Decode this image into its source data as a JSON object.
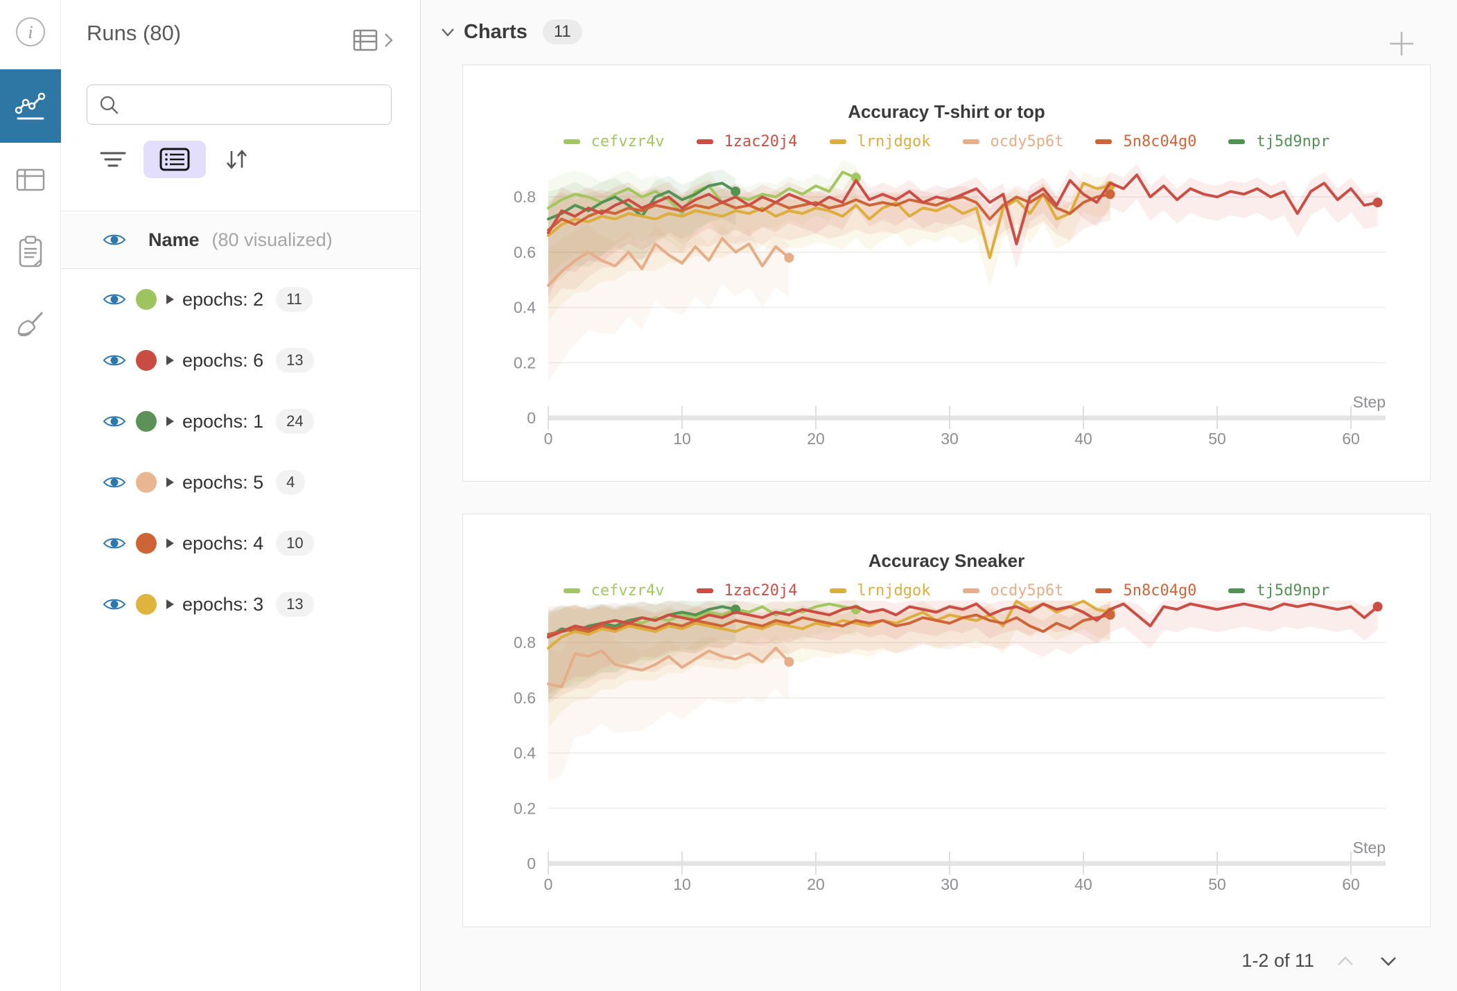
{
  "left_rail": {
    "items": [
      {
        "icon": "info-icon",
        "active": false
      },
      {
        "icon": "line-chart-icon",
        "active": true
      },
      {
        "icon": "table-icon",
        "active": false
      },
      {
        "icon": "clipboard-icon",
        "active": false
      },
      {
        "icon": "broom-icon",
        "active": false
      }
    ],
    "active_color": "#2e76a4"
  },
  "runs_panel": {
    "title": "Runs (80)",
    "search": {
      "placeholder": "",
      "value": ""
    },
    "header": {
      "name_label": "Name",
      "visualized_label": "(80 visualized)"
    },
    "eye_color": "#2e77ae",
    "rows": [
      {
        "label": "epochs: 2",
        "count": "11",
        "color": "#9ec45f"
      },
      {
        "label": "epochs: 6",
        "count": "13",
        "color": "#c94c43"
      },
      {
        "label": "epochs: 1",
        "count": "24",
        "color": "#5b9257"
      },
      {
        "label": "epochs: 5",
        "count": "4",
        "color": "#e8b691"
      },
      {
        "label": "epochs: 4",
        "count": "10",
        "color": "#cd6436"
      },
      {
        "label": "epochs: 3",
        "count": "13",
        "color": "#e0b33e"
      }
    ]
  },
  "main": {
    "section_label": "Charts",
    "section_count": "11",
    "pagination": {
      "label": "1-2 of 11"
    }
  },
  "chart_data": [
    {
      "type": "line",
      "title": "Accuracy T-shirt or top",
      "xlabel": "Step",
      "x_ticks": [
        0,
        10,
        20,
        30,
        40,
        50,
        60
      ],
      "y_ticks": [
        0,
        0.2,
        0.4,
        0.6,
        0.8
      ],
      "xlim": [
        0,
        63
      ],
      "ylim": [
        0,
        0.96
      ],
      "grid": true,
      "legend_position": "top",
      "series": [
        {
          "name": "cefvzr4v",
          "color": "#a2c75f",
          "band": 0.2,
          "values": [
            0.76,
            0.79,
            0.81,
            0.8,
            0.78,
            0.81,
            0.83,
            0.8,
            0.82,
            0.79,
            0.74,
            0.82,
            0.84,
            0.78,
            0.8,
            0.79,
            0.81,
            0.8,
            0.83,
            0.81,
            0.84,
            0.82,
            0.89,
            0.87
          ]
        },
        {
          "name": "1zac20j4",
          "color": "#cb4e44",
          "band": 0.18,
          "values": [
            0.67,
            0.75,
            0.73,
            0.76,
            0.74,
            0.77,
            0.79,
            0.76,
            0.78,
            0.8,
            0.76,
            0.79,
            0.81,
            0.78,
            0.8,
            0.77,
            0.8,
            0.78,
            0.81,
            0.79,
            0.77,
            0.8,
            0.78,
            0.86,
            0.79,
            0.81,
            0.79,
            0.82,
            0.78,
            0.8,
            0.79,
            0.81,
            0.83,
            0.78,
            0.81,
            0.63,
            0.8,
            0.83,
            0.77,
            0.86,
            0.81,
            0.78,
            0.85,
            0.83,
            0.88,
            0.8,
            0.84,
            0.79,
            0.83,
            0.81,
            0.8,
            0.82,
            0.81,
            0.83,
            0.8,
            0.82,
            0.74,
            0.82,
            0.85,
            0.79,
            0.83,
            0.77,
            0.78
          ]
        },
        {
          "name": "lrnjdgok",
          "color": "#ddad3d",
          "band": 0.26,
          "values": [
            0.66,
            0.7,
            0.72,
            0.71,
            0.73,
            0.72,
            0.74,
            0.73,
            0.72,
            0.74,
            0.73,
            0.75,
            0.74,
            0.73,
            0.75,
            0.74,
            0.76,
            0.73,
            0.75,
            0.74,
            0.76,
            0.75,
            0.73,
            0.77,
            0.72,
            0.76,
            0.78,
            0.73,
            0.76,
            0.75,
            0.77,
            0.74,
            0.76,
            0.58,
            0.76,
            0.79,
            0.74,
            0.81,
            0.72,
            0.74,
            0.85,
            0.83,
            0.84
          ]
        },
        {
          "name": "ocdy5p6t",
          "color": "#e6ad89",
          "band": 0.3,
          "values": [
            0.48,
            0.53,
            0.57,
            0.6,
            0.57,
            0.55,
            0.6,
            0.54,
            0.63,
            0.59,
            0.56,
            0.62,
            0.57,
            0.65,
            0.6,
            0.63,
            0.55,
            0.62,
            0.58
          ]
        },
        {
          "name": "5n8c04g0",
          "color": "#ce6539",
          "band": 0.22,
          "values": [
            0.68,
            0.72,
            0.7,
            0.73,
            0.75,
            0.74,
            0.76,
            0.75,
            0.77,
            0.76,
            0.75,
            0.77,
            0.76,
            0.78,
            0.76,
            0.77,
            0.75,
            0.78,
            0.76,
            0.77,
            0.78,
            0.76,
            0.77,
            0.79,
            0.77,
            0.78,
            0.77,
            0.79,
            0.78,
            0.77,
            0.79,
            0.8,
            0.78,
            0.72,
            0.77,
            0.8,
            0.78,
            0.81,
            0.76,
            0.74,
            0.78,
            0.8,
            0.81
          ]
        },
        {
          "name": "tj5d9npr",
          "color": "#529354",
          "band": 0.2,
          "values": [
            0.72,
            0.74,
            0.77,
            0.75,
            0.78,
            0.8,
            0.77,
            0.73,
            0.8,
            0.82,
            0.79,
            0.81,
            0.84,
            0.85,
            0.82
          ]
        }
      ]
    },
    {
      "type": "line",
      "title": "Accuracy Sneaker",
      "xlabel": "Step",
      "x_ticks": [
        0,
        10,
        20,
        30,
        40,
        50,
        60
      ],
      "y_ticks": [
        0,
        0.2,
        0.4,
        0.6,
        0.8
      ],
      "xlim": [
        0,
        63
      ],
      "ylim": [
        0,
        0.96
      ],
      "grid": true,
      "legend_position": "top",
      "series": [
        {
          "name": "cefvzr4v",
          "color": "#a2c75f",
          "band": 0.18,
          "values": [
            0.82,
            0.84,
            0.86,
            0.85,
            0.87,
            0.86,
            0.88,
            0.87,
            0.89,
            0.88,
            0.9,
            0.89,
            0.91,
            0.9,
            0.92,
            0.91,
            0.93,
            0.9,
            0.92,
            0.91,
            0.93,
            0.94,
            0.93,
            0.92
          ]
        },
        {
          "name": "1zac20j4",
          "color": "#cb4e44",
          "band": 0.16,
          "values": [
            0.82,
            0.84,
            0.86,
            0.85,
            0.87,
            0.88,
            0.87,
            0.89,
            0.88,
            0.9,
            0.89,
            0.88,
            0.9,
            0.89,
            0.91,
            0.9,
            0.89,
            0.91,
            0.9,
            0.92,
            0.91,
            0.9,
            0.92,
            0.93,
            0.91,
            0.92,
            0.9,
            0.93,
            0.92,
            0.91,
            0.93,
            0.92,
            0.94,
            0.9,
            0.92,
            0.93,
            0.91,
            0.94,
            0.92,
            0.93,
            0.91,
            0.88,
            0.92,
            0.94,
            0.9,
            0.86,
            0.93,
            0.92,
            0.94,
            0.93,
            0.92,
            0.93,
            0.94,
            0.93,
            0.92,
            0.94,
            0.93,
            0.94,
            0.93,
            0.92,
            0.93,
            0.89,
            0.93
          ]
        },
        {
          "name": "lrnjdgok",
          "color": "#ddad3d",
          "band": 0.24,
          "values": [
            0.78,
            0.82,
            0.84,
            0.83,
            0.85,
            0.84,
            0.86,
            0.85,
            0.84,
            0.86,
            0.85,
            0.87,
            0.86,
            0.85,
            0.84,
            0.86,
            0.85,
            0.87,
            0.86,
            0.85,
            0.87,
            0.86,
            0.88,
            0.87,
            0.86,
            0.88,
            0.87,
            0.89,
            0.91,
            0.88,
            0.9,
            0.89,
            0.88,
            0.9,
            0.86,
            0.95,
            0.92,
            0.94,
            0.91,
            0.93,
            0.95,
            0.92,
            0.91
          ]
        },
        {
          "name": "ocdy5p6t",
          "color": "#e6ad89",
          "band": 0.3,
          "values": [
            0.65,
            0.64,
            0.76,
            0.75,
            0.77,
            0.72,
            0.71,
            0.7,
            0.72,
            0.75,
            0.71,
            0.74,
            0.77,
            0.75,
            0.74,
            0.76,
            0.73,
            0.78,
            0.73
          ]
        },
        {
          "name": "5n8c04g0",
          "color": "#ce6539",
          "band": 0.2,
          "values": [
            0.83,
            0.84,
            0.85,
            0.84,
            0.86,
            0.85,
            0.87,
            0.86,
            0.85,
            0.87,
            0.86,
            0.88,
            0.87,
            0.86,
            0.88,
            0.87,
            0.86,
            0.88,
            0.87,
            0.89,
            0.88,
            0.87,
            0.86,
            0.88,
            0.87,
            0.88,
            0.86,
            0.87,
            0.89,
            0.88,
            0.87,
            0.89,
            0.9,
            0.88,
            0.87,
            0.89,
            0.86,
            0.84,
            0.87,
            0.85,
            0.88,
            0.89,
            0.9
          ]
        },
        {
          "name": "tj5d9npr",
          "color": "#529354",
          "band": 0.18,
          "values": [
            0.82,
            0.85,
            0.84,
            0.86,
            0.87,
            0.86,
            0.88,
            0.89,
            0.88,
            0.9,
            0.91,
            0.9,
            0.92,
            0.93,
            0.92
          ]
        }
      ]
    }
  ]
}
